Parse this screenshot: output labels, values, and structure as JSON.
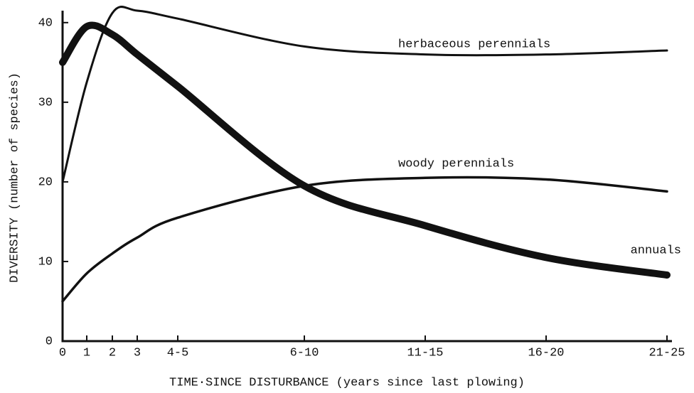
{
  "chart_data": {
    "type": "line",
    "xlabel": "TIME·SINCE DISTURBANCE  (years since last plowing)",
    "ylabel": "DIVERSITY (number of species)",
    "categories": [
      "0",
      "1",
      "2",
      "3",
      "4-5",
      "6-10",
      "11-15",
      "16-20",
      "21-25"
    ],
    "series": [
      {
        "name": "herbaceous perennials",
        "color": "#111111",
        "values": [
          20,
          32.5,
          41.2,
          41.5,
          40.5,
          37,
          36,
          36,
          36.5
        ]
      },
      {
        "name": "woody perennials",
        "color": "#111111",
        "values": [
          5,
          8.5,
          11,
          13,
          15.5,
          19.5,
          20.5,
          20.3,
          18.8
        ]
      },
      {
        "name": "annuals",
        "color": "#111111",
        "values": [
          35,
          39.5,
          38.5,
          36,
          32,
          19.5,
          14.5,
          10.5,
          8.3
        ]
      }
    ],
    "ylim": [
      0,
      41.5
    ],
    "yticks": [
      0,
      10,
      20,
      30,
      40
    ],
    "grid": false
  }
}
